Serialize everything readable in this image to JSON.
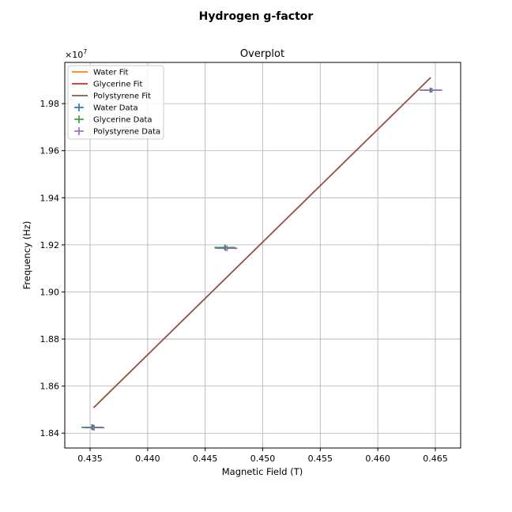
{
  "figure": {
    "suptitle": "Hydrogen g-factor"
  },
  "chart_data": {
    "type": "scatter",
    "title": "Overplot",
    "xlabel": "Magnetic Field (T)",
    "ylabel": "Frequency (Hz)",
    "y_offset_label": "×10",
    "y_offset_exponent": "7",
    "xlim": [
      0.4328,
      0.4672
    ],
    "ylim": [
      1.8337,
      1.9975
    ],
    "x_ticks": [
      0.435,
      0.44,
      0.445,
      0.45,
      0.455,
      0.46,
      0.465
    ],
    "x_tick_labels": [
      "0.435",
      "0.440",
      "0.445",
      "0.450",
      "0.455",
      "0.460",
      "0.465"
    ],
    "y_ticks": [
      1.84,
      1.86,
      1.88,
      1.9,
      1.92,
      1.94,
      1.96,
      1.98
    ],
    "y_tick_labels": [
      "1.84",
      "1.86",
      "1.88",
      "1.90",
      "1.92",
      "1.94",
      "1.96",
      "1.98"
    ],
    "grid": true,
    "legend_position": "top-left",
    "fits": [
      {
        "name": "Water Fit",
        "color": "#ff7f0e",
        "x": [
          0.4353,
          0.4646
        ],
        "y": [
          1.8508,
          1.9911
        ]
      },
      {
        "name": "Glycerine Fit",
        "color": "#d62728",
        "x": [
          0.4353,
          0.4646
        ],
        "y": [
          1.8508,
          1.9911
        ]
      },
      {
        "name": "Polystyrene Fit",
        "color": "#8c564b",
        "x": [
          0.4353,
          0.4646
        ],
        "y": [
          1.8508,
          1.9911
        ]
      }
    ],
    "series": [
      {
        "name": "Water Data",
        "color": "#1f77b4",
        "points": [
          {
            "x": 0.43515,
            "y": 1.8425,
            "xerr": 0.0009,
            "yerr": 0.0012
          },
          {
            "x": 0.44675,
            "y": 1.9187,
            "xerr": 0.0009,
            "yerr": 0.0012
          },
          {
            "x": 0.46455,
            "y": 1.9857,
            "xerr": 0.0009,
            "yerr": 0.001
          }
        ]
      },
      {
        "name": "Glycerine Data",
        "color": "#2ca02c",
        "points": [
          {
            "x": 0.43525,
            "y": 1.8425,
            "xerr": 0.0009,
            "yerr": 0.0012
          },
          {
            "x": 0.4467,
            "y": 1.9189,
            "xerr": 0.0009,
            "yerr": 0.0012
          },
          {
            "x": 0.4646,
            "y": 1.9857,
            "xerr": 0.0009,
            "yerr": 0.001
          }
        ]
      },
      {
        "name": "Polystyrene Data",
        "color": "#9467bd",
        "points": [
          {
            "x": 0.43535,
            "y": 1.8423,
            "xerr": 0.0009,
            "yerr": 0.0012
          },
          {
            "x": 0.4469,
            "y": 1.9185,
            "xerr": 0.0009,
            "yerr": 0.0012
          },
          {
            "x": 0.4647,
            "y": 1.9857,
            "xerr": 0.0009,
            "yerr": 0.001
          }
        ]
      }
    ]
  }
}
